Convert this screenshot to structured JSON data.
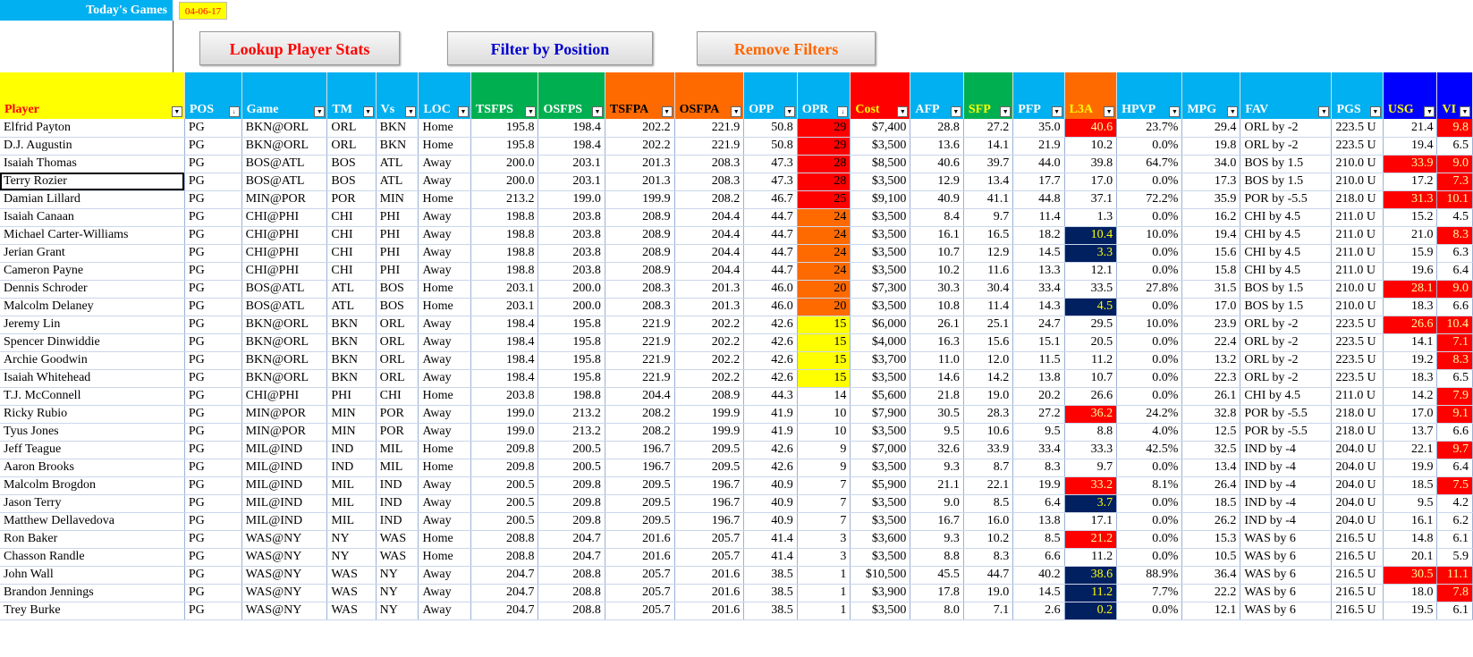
{
  "header": {
    "title": "Today's Games",
    "date": "04-06-17"
  },
  "buttons": {
    "lookup": "Lookup Player Stats",
    "filter": "Filter by Position",
    "remove": "Remove Filters"
  },
  "colors": {
    "title_bg": "#00b0f0",
    "accent_red": "#ff0000",
    "accent_orange": "#ff6a00",
    "accent_yellow": "#ffff00",
    "accent_navy": "#002060",
    "green": "#00b050",
    "blue": "#0000ff"
  },
  "columns": [
    {
      "label": "Player",
      "bg": "#ffff00",
      "color": "#ff0000",
      "sort": false
    },
    {
      "label": "POS",
      "bg": "#00b0f0",
      "color": "#fff",
      "sort": true
    },
    {
      "label": "Game",
      "bg": "#00b0f0",
      "color": "#fff",
      "sort": false
    },
    {
      "label": "TM",
      "bg": "#00b0f0",
      "color": "#fff",
      "sort": false
    },
    {
      "label": "Vs",
      "bg": "#00b0f0",
      "color": "#fff",
      "sort": false
    },
    {
      "label": "LOC",
      "bg": "#00b0f0",
      "color": "#fff",
      "sort": false
    },
    {
      "label": "TSFPS",
      "bg": "#00b050",
      "color": "#fff",
      "sort": false
    },
    {
      "label": "OSFPS",
      "bg": "#00b050",
      "color": "#fff",
      "sort": false
    },
    {
      "label": "TSFPA",
      "bg": "#ff6a00",
      "color": "#000",
      "sort": false
    },
    {
      "label": "OSFPA",
      "bg": "#ff6a00",
      "color": "#000",
      "sort": false
    },
    {
      "label": "OPP",
      "bg": "#00b0f0",
      "color": "#fff",
      "sort": false
    },
    {
      "label": "OPR",
      "bg": "#00b0f0",
      "color": "#fff",
      "sort": true
    },
    {
      "label": "Cost",
      "bg": "#ff0000",
      "color": "#ffff00",
      "sort": false
    },
    {
      "label": "AFP",
      "bg": "#00b0f0",
      "color": "#fff",
      "sort": false
    },
    {
      "label": "SFP",
      "bg": "#00b050",
      "color": "#ffff00",
      "sort": false
    },
    {
      "label": "PFP",
      "bg": "#00b0f0",
      "color": "#fff",
      "sort": false
    },
    {
      "label": "L3A",
      "bg": "#ff6a00",
      "color": "#ffff00",
      "sort": false
    },
    {
      "label": "HPVP",
      "bg": "#00b0f0",
      "color": "#fff",
      "sort": false
    },
    {
      "label": "MPG",
      "bg": "#00b0f0",
      "color": "#fff",
      "sort": false
    },
    {
      "label": "FAV",
      "bg": "#00b0f0",
      "color": "#fff",
      "sort": false
    },
    {
      "label": "PGS",
      "bg": "#00b0f0",
      "color": "#fff",
      "sort": false
    },
    {
      "label": "USG",
      "bg": "#0000ff",
      "color": "#ffff00",
      "sort": false
    },
    {
      "label": "VI",
      "bg": "#0000ff",
      "color": "#ffff00",
      "sort": false
    }
  ],
  "rows": [
    [
      "Elfrid Payton",
      "PG",
      "BKN@ORL",
      "ORL",
      "BKN",
      "Home",
      "195.8",
      "198.4",
      "202.2",
      "221.9",
      "50.8",
      "29",
      "$7,400",
      "28.8",
      "27.2",
      "35.0",
      "40.6",
      "23.7%",
      "29.4",
      "ORL by -2",
      "223.5 U",
      "21.4",
      "9.8"
    ],
    [
      "D.J. Augustin",
      "PG",
      "BKN@ORL",
      "ORL",
      "BKN",
      "Home",
      "195.8",
      "198.4",
      "202.2",
      "221.9",
      "50.8",
      "29",
      "$3,500",
      "13.6",
      "14.1",
      "21.9",
      "10.2",
      "0.0%",
      "19.8",
      "ORL by -2",
      "223.5 U",
      "19.4",
      "6.5"
    ],
    [
      "Isaiah Thomas",
      "PG",
      "BOS@ATL",
      "BOS",
      "ATL",
      "Away",
      "200.0",
      "203.1",
      "201.3",
      "208.3",
      "47.3",
      "28",
      "$8,500",
      "40.6",
      "39.7",
      "44.0",
      "39.8",
      "64.7%",
      "34.0",
      "BOS by 1.5",
      "210.0 U",
      "33.9",
      "9.0"
    ],
    [
      "Terry Rozier",
      "PG",
      "BOS@ATL",
      "BOS",
      "ATL",
      "Away",
      "200.0",
      "203.1",
      "201.3",
      "208.3",
      "47.3",
      "28",
      "$3,500",
      "12.9",
      "13.4",
      "17.7",
      "17.0",
      "0.0%",
      "17.3",
      "BOS by 1.5",
      "210.0 U",
      "17.2",
      "7.3"
    ],
    [
      "Damian Lillard",
      "PG",
      "MIN@POR",
      "POR",
      "MIN",
      "Home",
      "213.2",
      "199.0",
      "199.9",
      "208.2",
      "46.7",
      "25",
      "$9,100",
      "40.9",
      "41.1",
      "44.8",
      "37.1",
      "72.2%",
      "35.9",
      "POR by -5.5",
      "218.0 U",
      "31.3",
      "10.1"
    ],
    [
      "Isaiah Canaan",
      "PG",
      "CHI@PHI",
      "CHI",
      "PHI",
      "Away",
      "198.8",
      "203.8",
      "208.9",
      "204.4",
      "44.7",
      "24",
      "$3,500",
      "8.4",
      "9.7",
      "11.4",
      "1.3",
      "0.0%",
      "16.2",
      "CHI by 4.5",
      "211.0 U",
      "15.2",
      "4.5"
    ],
    [
      "Michael Carter-Williams",
      "PG",
      "CHI@PHI",
      "CHI",
      "PHI",
      "Away",
      "198.8",
      "203.8",
      "208.9",
      "204.4",
      "44.7",
      "24",
      "$3,500",
      "16.1",
      "16.5",
      "18.2",
      "10.4",
      "10.0%",
      "19.4",
      "CHI by 4.5",
      "211.0 U",
      "21.0",
      "8.3"
    ],
    [
      "Jerian Grant",
      "PG",
      "CHI@PHI",
      "CHI",
      "PHI",
      "Away",
      "198.8",
      "203.8",
      "208.9",
      "204.4",
      "44.7",
      "24",
      "$3,500",
      "10.7",
      "12.9",
      "14.5",
      "3.3",
      "0.0%",
      "15.6",
      "CHI by 4.5",
      "211.0 U",
      "15.9",
      "6.3"
    ],
    [
      "Cameron Payne",
      "PG",
      "CHI@PHI",
      "CHI",
      "PHI",
      "Away",
      "198.8",
      "203.8",
      "208.9",
      "204.4",
      "44.7",
      "24",
      "$3,500",
      "10.2",
      "11.6",
      "13.3",
      "12.1",
      "0.0%",
      "15.8",
      "CHI by 4.5",
      "211.0 U",
      "19.6",
      "6.4"
    ],
    [
      "Dennis Schroder",
      "PG",
      "BOS@ATL",
      "ATL",
      "BOS",
      "Home",
      "203.1",
      "200.0",
      "208.3",
      "201.3",
      "46.0",
      "20",
      "$7,300",
      "30.3",
      "30.4",
      "33.4",
      "33.5",
      "27.8%",
      "31.5",
      "BOS by 1.5",
      "210.0 U",
      "28.1",
      "9.0"
    ],
    [
      "Malcolm Delaney",
      "PG",
      "BOS@ATL",
      "ATL",
      "BOS",
      "Home",
      "203.1",
      "200.0",
      "208.3",
      "201.3",
      "46.0",
      "20",
      "$3,500",
      "10.8",
      "11.4",
      "14.3",
      "4.5",
      "0.0%",
      "17.0",
      "BOS by 1.5",
      "210.0 U",
      "18.3",
      "6.6"
    ],
    [
      "Jeremy Lin",
      "PG",
      "BKN@ORL",
      "BKN",
      "ORL",
      "Away",
      "198.4",
      "195.8",
      "221.9",
      "202.2",
      "42.6",
      "15",
      "$6,000",
      "26.1",
      "25.1",
      "24.7",
      "29.5",
      "10.0%",
      "23.9",
      "ORL by -2",
      "223.5 U",
      "26.6",
      "10.4"
    ],
    [
      "Spencer Dinwiddie",
      "PG",
      "BKN@ORL",
      "BKN",
      "ORL",
      "Away",
      "198.4",
      "195.8",
      "221.9",
      "202.2",
      "42.6",
      "15",
      "$4,000",
      "16.3",
      "15.6",
      "15.1",
      "20.5",
      "0.0%",
      "22.4",
      "ORL by -2",
      "223.5 U",
      "14.1",
      "7.1"
    ],
    [
      "Archie Goodwin",
      "PG",
      "BKN@ORL",
      "BKN",
      "ORL",
      "Away",
      "198.4",
      "195.8",
      "221.9",
      "202.2",
      "42.6",
      "15",
      "$3,700",
      "11.0",
      "12.0",
      "11.5",
      "11.2",
      "0.0%",
      "13.2",
      "ORL by -2",
      "223.5 U",
      "19.2",
      "8.3"
    ],
    [
      "Isaiah Whitehead",
      "PG",
      "BKN@ORL",
      "BKN",
      "ORL",
      "Away",
      "198.4",
      "195.8",
      "221.9",
      "202.2",
      "42.6",
      "15",
      "$3,500",
      "14.6",
      "14.2",
      "13.8",
      "10.7",
      "0.0%",
      "22.3",
      "ORL by -2",
      "223.5 U",
      "18.3",
      "6.5"
    ],
    [
      "T.J. McConnell",
      "PG",
      "CHI@PHI",
      "PHI",
      "CHI",
      "Home",
      "203.8",
      "198.8",
      "204.4",
      "208.9",
      "44.3",
      "14",
      "$5,600",
      "21.8",
      "19.0",
      "20.2",
      "26.6",
      "0.0%",
      "26.1",
      "CHI by 4.5",
      "211.0 U",
      "14.2",
      "7.9"
    ],
    [
      "Ricky Rubio",
      "PG",
      "MIN@POR",
      "MIN",
      "POR",
      "Away",
      "199.0",
      "213.2",
      "208.2",
      "199.9",
      "41.9",
      "10",
      "$7,900",
      "30.5",
      "28.3",
      "27.2",
      "36.2",
      "24.2%",
      "32.8",
      "POR by -5.5",
      "218.0 U",
      "17.0",
      "9.1"
    ],
    [
      "Tyus Jones",
      "PG",
      "MIN@POR",
      "MIN",
      "POR",
      "Away",
      "199.0",
      "213.2",
      "208.2",
      "199.9",
      "41.9",
      "10",
      "$3,500",
      "9.5",
      "10.6",
      "9.5",
      "8.8",
      "4.0%",
      "12.5",
      "POR by -5.5",
      "218.0 U",
      "13.7",
      "6.6"
    ],
    [
      "Jeff Teague",
      "PG",
      "MIL@IND",
      "IND",
      "MIL",
      "Home",
      "209.8",
      "200.5",
      "196.7",
      "209.5",
      "42.6",
      "9",
      "$7,000",
      "32.6",
      "33.9",
      "33.4",
      "33.3",
      "42.5%",
      "32.5",
      "IND by -4",
      "204.0 U",
      "22.1",
      "9.7"
    ],
    [
      "Aaron Brooks",
      "PG",
      "MIL@IND",
      "IND",
      "MIL",
      "Home",
      "209.8",
      "200.5",
      "196.7",
      "209.5",
      "42.6",
      "9",
      "$3,500",
      "9.3",
      "8.7",
      "8.3",
      "9.7",
      "0.0%",
      "13.4",
      "IND by -4",
      "204.0 U",
      "19.9",
      "6.4"
    ],
    [
      "Malcolm Brogdon",
      "PG",
      "MIL@IND",
      "MIL",
      "IND",
      "Away",
      "200.5",
      "209.8",
      "209.5",
      "196.7",
      "40.9",
      "7",
      "$5,900",
      "21.1",
      "22.1",
      "19.9",
      "33.2",
      "8.1%",
      "26.4",
      "IND by -4",
      "204.0 U",
      "18.5",
      "7.5"
    ],
    [
      "Jason Terry",
      "PG",
      "MIL@IND",
      "MIL",
      "IND",
      "Away",
      "200.5",
      "209.8",
      "209.5",
      "196.7",
      "40.9",
      "7",
      "$3,500",
      "9.0",
      "8.5",
      "6.4",
      "3.7",
      "0.0%",
      "18.5",
      "IND by -4",
      "204.0 U",
      "9.5",
      "4.2"
    ],
    [
      "Matthew Dellavedova",
      "PG",
      "MIL@IND",
      "MIL",
      "IND",
      "Away",
      "200.5",
      "209.8",
      "209.5",
      "196.7",
      "40.9",
      "7",
      "$3,500",
      "16.7",
      "16.0",
      "13.8",
      "17.1",
      "0.0%",
      "26.2",
      "IND by -4",
      "204.0 U",
      "16.1",
      "6.2"
    ],
    [
      "Ron Baker",
      "PG",
      "WAS@NY",
      "NY",
      "WAS",
      "Home",
      "208.8",
      "204.7",
      "201.6",
      "205.7",
      "41.4",
      "3",
      "$3,600",
      "9.3",
      "10.2",
      "8.5",
      "21.2",
      "0.0%",
      "15.3",
      "WAS by 6",
      "216.5 U",
      "14.8",
      "6.1"
    ],
    [
      "Chasson Randle",
      "PG",
      "WAS@NY",
      "NY",
      "WAS",
      "Home",
      "208.8",
      "204.7",
      "201.6",
      "205.7",
      "41.4",
      "3",
      "$3,500",
      "8.8",
      "8.3",
      "6.6",
      "11.2",
      "0.0%",
      "10.5",
      "WAS by 6",
      "216.5 U",
      "20.1",
      "5.9"
    ],
    [
      "John Wall",
      "PG",
      "WAS@NY",
      "WAS",
      "NY",
      "Away",
      "204.7",
      "208.8",
      "205.7",
      "201.6",
      "38.5",
      "1",
      "$10,500",
      "45.5",
      "44.7",
      "40.2",
      "38.6",
      "88.9%",
      "36.4",
      "WAS by 6",
      "216.5 U",
      "30.5",
      "11.1"
    ],
    [
      "Brandon Jennings",
      "PG",
      "WAS@NY",
      "WAS",
      "NY",
      "Away",
      "204.7",
      "208.8",
      "205.7",
      "201.6",
      "38.5",
      "1",
      "$3,900",
      "17.8",
      "19.0",
      "14.5",
      "11.2",
      "7.7%",
      "22.2",
      "WAS by 6",
      "216.5 U",
      "18.0",
      "7.8"
    ],
    [
      "Trey Burke",
      "PG",
      "WAS@NY",
      "WAS",
      "NY",
      "Away",
      "204.7",
      "208.8",
      "205.7",
      "201.6",
      "38.5",
      "1",
      "$3,500",
      "8.0",
      "7.1",
      "2.6",
      "0.2",
      "0.0%",
      "12.1",
      "WAS by 6",
      "216.5 U",
      "19.5",
      "6.1"
    ]
  ],
  "highlights": {
    "opr": {
      "29": "red",
      "28": "red",
      "25": "red",
      "24": "orange",
      "20": "orange",
      "15": "yellow"
    },
    "l3a": {
      "0": "red",
      "6": "navy",
      "7": "navy",
      "10": "navy",
      "16": "red",
      "20": "red",
      "21": "navy",
      "23": "red",
      "25": "navy",
      "26": "navy",
      "27": "navy"
    },
    "usg": [
      2,
      4,
      9,
      11,
      25
    ],
    "vi": [
      0,
      2,
      3,
      4,
      6,
      9,
      11,
      12,
      13,
      15,
      16,
      18,
      20,
      25,
      26
    ]
  }
}
